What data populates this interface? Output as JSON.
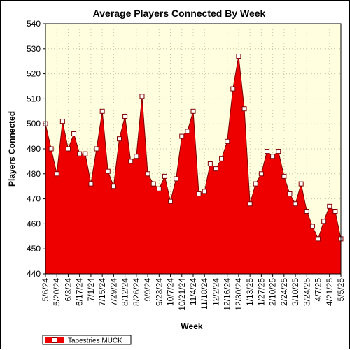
{
  "chart_data": {
    "type": "area",
    "title": "Average Players Connected By Week",
    "xlabel": "Week",
    "ylabel": "Players Connected",
    "ylim": [
      440,
      540
    ],
    "yticks": [
      440,
      450,
      460,
      470,
      480,
      490,
      500,
      510,
      520,
      530,
      540
    ],
    "grid": true,
    "legend_position": "bottom-left",
    "colors": {
      "fill": "#ee0000",
      "line": "#800000",
      "marker_fill": "#ffffff",
      "plot_background": "#ffffe0",
      "grid": "#c8c8a0"
    },
    "x": [
      "5/6/24",
      "5/13/24",
      "5/20/24",
      "5/27/24",
      "6/3/24",
      "6/10/24",
      "6/17/24",
      "6/24/24",
      "7/1/24",
      "7/8/24",
      "7/15/24",
      "7/22/24",
      "7/29/24",
      "8/5/24",
      "8/12/24",
      "8/19/24",
      "8/26/24",
      "9/2/24",
      "9/9/24",
      "9/16/24",
      "9/23/24",
      "9/30/24",
      "10/7/24",
      "10/14/24",
      "10/21/24",
      "10/28/24",
      "11/4/24",
      "11/11/24",
      "11/18/24",
      "11/25/24",
      "12/2/24",
      "12/9/24",
      "12/16/24",
      "12/23/24",
      "12/30/24",
      "1/6/25",
      "1/13/25",
      "1/20/25",
      "1/27/25",
      "2/3/25",
      "2/10/25",
      "2/17/25",
      "2/24/25",
      "3/3/25",
      "3/10/25",
      "3/17/25",
      "3/24/25",
      "3/31/25",
      "4/7/25",
      "4/14/25",
      "4/21/25",
      "4/28/25",
      "5/5/25"
    ],
    "x_tick_labels": [
      "5/6/24",
      "5/20/24",
      "6/3/24",
      "6/17/24",
      "7/1/24",
      "7/15/24",
      "7/29/24",
      "8/12/24",
      "8/26/24",
      "9/9/24",
      "9/23/24",
      "10/7/24",
      "10/21/24",
      "11/4/24",
      "11/18/24",
      "12/2/24",
      "12/16/24",
      "12/30/24",
      "1/13/25",
      "1/27/25",
      "2/10/25",
      "2/24/25",
      "3/10/25",
      "3/24/25",
      "4/7/25",
      "4/21/25",
      "5/5/25"
    ],
    "series": [
      {
        "name": "Tapestries MUCK",
        "values": [
          500,
          490,
          480,
          501,
          490,
          496,
          488,
          488,
          476,
          490,
          505,
          481,
          475,
          494,
          503,
          485,
          487,
          511,
          480,
          476,
          474,
          479,
          469,
          478,
          495,
          497,
          505,
          472,
          473,
          484,
          482,
          486,
          493,
          514,
          527,
          506,
          468,
          476,
          480,
          489,
          487,
          489,
          479,
          472,
          468,
          476,
          465,
          459,
          454,
          461,
          467,
          465,
          454
        ]
      }
    ]
  }
}
